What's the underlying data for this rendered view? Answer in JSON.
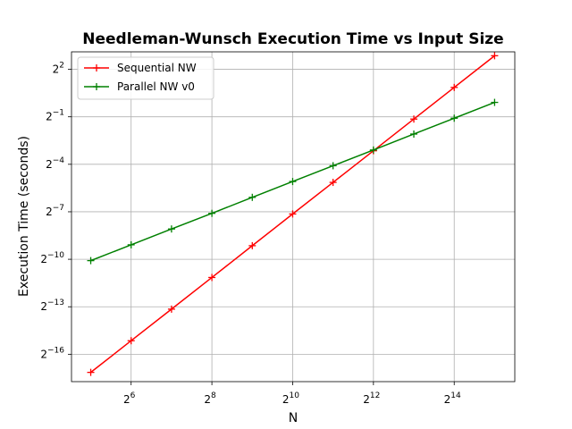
{
  "chart_data": {
    "type": "line",
    "title": "Needleman-Wunsch Execution Time vs Input Size",
    "xlabel": "N",
    "ylabel": "Execution Time (seconds)",
    "x_scale": "log2",
    "y_scale": "log2",
    "x_ticks": [
      {
        "base": "2",
        "exp": "6"
      },
      {
        "base": "2",
        "exp": "8"
      },
      {
        "base": "2",
        "exp": "10"
      },
      {
        "base": "2",
        "exp": "12"
      },
      {
        "base": "2",
        "exp": "14"
      }
    ],
    "y_ticks": [
      {
        "base": "2",
        "exp": "2"
      },
      {
        "base": "2",
        "exp": "−1"
      },
      {
        "base": "2",
        "exp": "−4"
      },
      {
        "base": "2",
        "exp": "−7"
      },
      {
        "base": "2",
        "exp": "−10"
      },
      {
        "base": "2",
        "exp": "−13"
      },
      {
        "base": "2",
        "exp": "−16"
      }
    ],
    "xlim": [
      23,
      46341
    ],
    "ylim": [
      4.6e-06,
      8.6
    ],
    "grid": true,
    "legend_position": "top-left",
    "x": [
      32,
      64,
      128,
      256,
      512,
      1024,
      2048,
      4096,
      8192,
      16384,
      32768
    ],
    "series": [
      {
        "name": "Sequential NW",
        "color": "#ff0000",
        "marker": "+",
        "values": [
          6.9e-06,
          2.76e-05,
          0.00011,
          0.00044,
          0.00177,
          0.0071,
          0.0283,
          0.113,
          0.453,
          1.81,
          7.25
        ]
      },
      {
        "name": "Parallel NW v0",
        "color": "#008000",
        "marker": "+",
        "values": [
          0.00092,
          0.00184,
          0.00368,
          0.0073,
          0.0147,
          0.0294,
          0.0587,
          0.117,
          0.235,
          0.47,
          0.94
        ]
      }
    ]
  }
}
